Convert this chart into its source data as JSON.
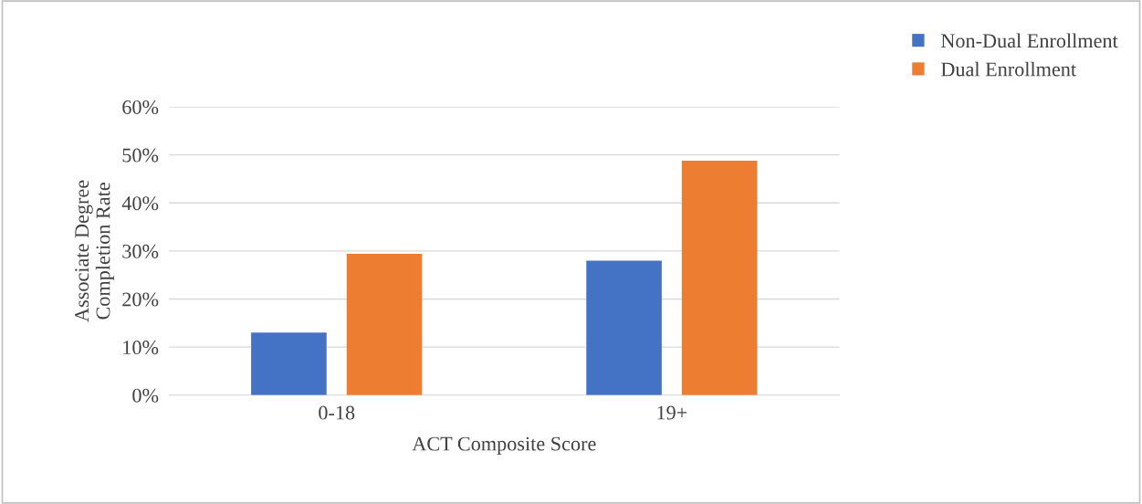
{
  "chart_data": {
    "type": "bar",
    "categories": [
      "0-18",
      "19+"
    ],
    "series": [
      {
        "name": "Non-Dual Enrollment",
        "color": "#4472c4",
        "values": [
          13,
          28
        ]
      },
      {
        "name": "Dual Enrollment",
        "color": "#ed7d31",
        "values": [
          29.4,
          48.8
        ]
      }
    ],
    "xlabel": "ACT Composite Score",
    "ylabel": "Associate Degree\nCompletion Rate",
    "ylim": [
      0,
      60
    ],
    "yticks": [
      {
        "value": 0,
        "label": "0%"
      },
      {
        "value": 10,
        "label": "10%"
      },
      {
        "value": 20,
        "label": "20%"
      },
      {
        "value": 30,
        "label": "30%"
      },
      {
        "value": 40,
        "label": "40%"
      },
      {
        "value": 50,
        "label": "50%"
      },
      {
        "value": 60,
        "label": "60%"
      }
    ],
    "grid": "y",
    "legend": "top right"
  }
}
